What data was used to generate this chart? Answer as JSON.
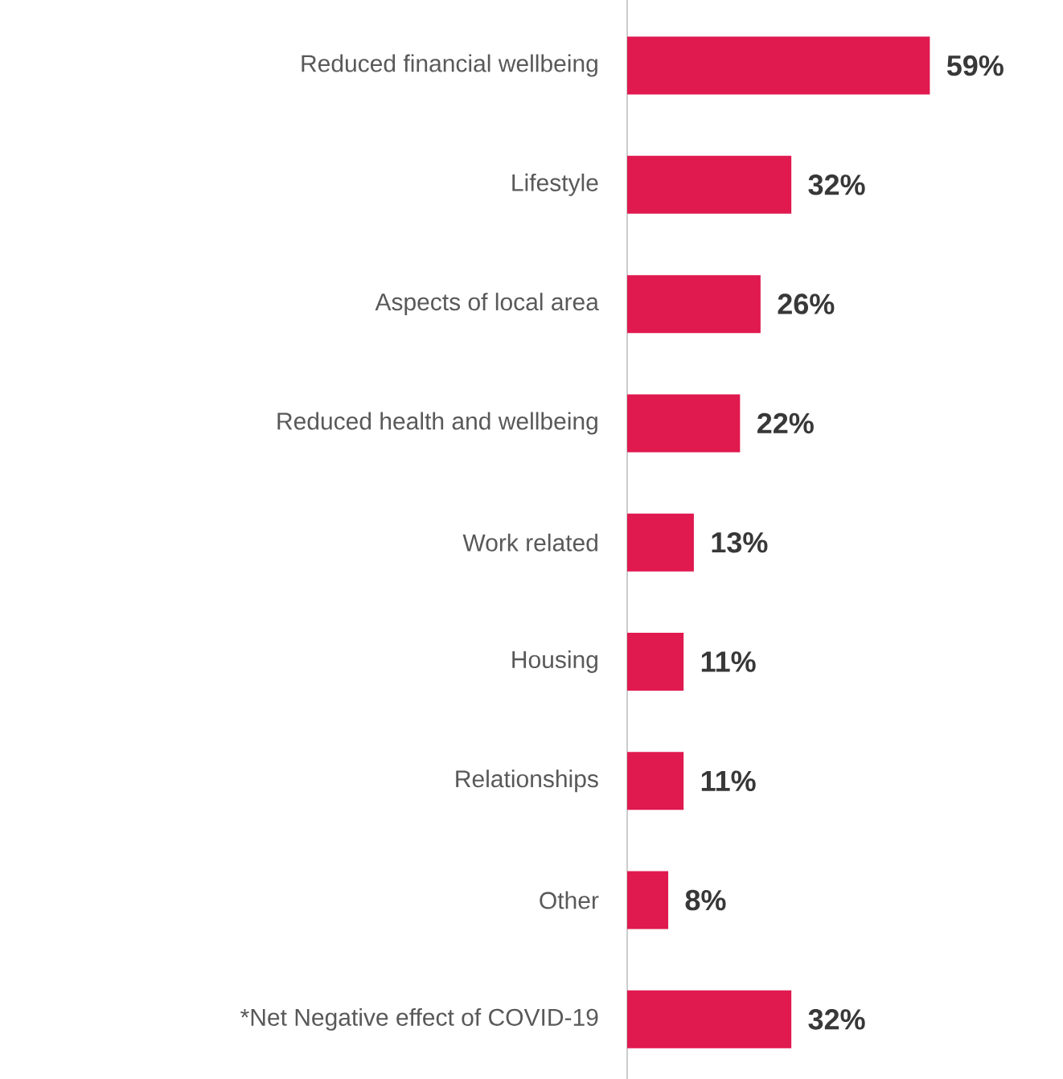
{
  "chart_data": {
    "type": "bar",
    "orientation": "horizontal",
    "color": "#e0194f",
    "categories": [
      "Reduced financial wellbeing",
      "Lifestyle",
      "Aspects of local area",
      "Reduced health and wellbeing",
      "Work related",
      "Housing",
      "Relationships",
      "Other",
      "*Net Negative effect of COVID-19"
    ],
    "values": [
      59,
      32,
      26,
      22,
      13,
      11,
      11,
      8,
      32
    ],
    "value_labels": [
      "59%",
      "32%",
      "26%",
      "22%",
      "13%",
      "11%",
      "11%",
      "8%",
      "32%"
    ]
  }
}
